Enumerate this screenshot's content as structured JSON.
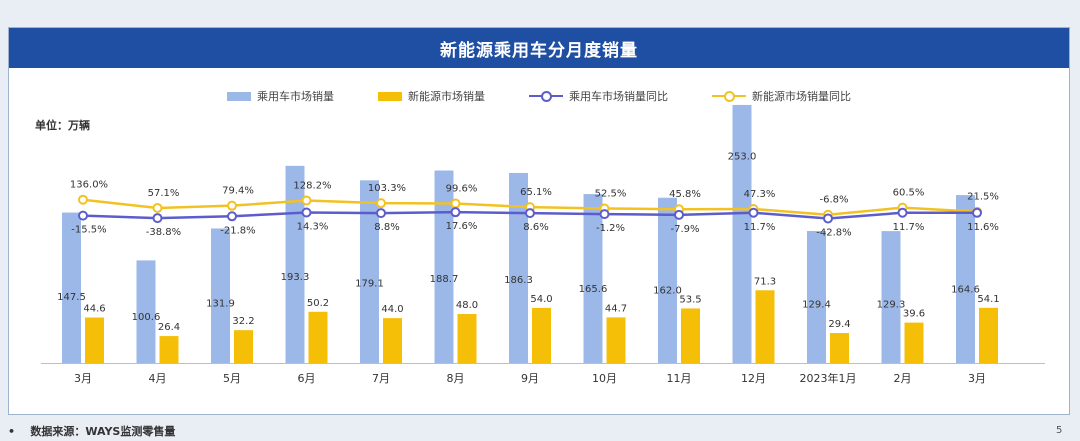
{
  "title": "新能源乘用车分月度销量",
  "unit_label": "单位：万辆",
  "footer": {
    "bullet": "•",
    "source": "数据来源：WAYS监测零售量",
    "page_number": "5"
  },
  "colors": {
    "title_bg": "#1f4fa3",
    "passenger_bar": "#9cb8e8",
    "nev_bar": "#f5bf08",
    "passenger_line": "#5c5ccc",
    "nev_line": "#f2c224"
  },
  "chart_data": {
    "type": "bar",
    "categories": [
      "3月",
      "4月",
      "5月",
      "6月",
      "7月",
      "8月",
      "9月",
      "10月",
      "11月",
      "12月",
      "2023年1月",
      "2月",
      "3月"
    ],
    "series": [
      {
        "name": "乘用车市场销量",
        "kind": "bar",
        "values": [
          147.5,
          100.6,
          131.9,
          193.3,
          179.1,
          188.7,
          186.3,
          165.6,
          162.0,
          253.0,
          129.4,
          129.3,
          164.6
        ]
      },
      {
        "name": "新能源市场销量",
        "kind": "bar",
        "values": [
          44.6,
          26.4,
          32.2,
          50.2,
          44.0,
          48.0,
          54.0,
          44.7,
          53.5,
          71.3,
          29.4,
          39.6,
          54.1
        ]
      },
      {
        "name": "乘用车市场销量同比",
        "kind": "line",
        "values": [
          -15.5,
          -38.8,
          -21.8,
          14.3,
          8.8,
          17.6,
          8.6,
          -1.2,
          -7.9,
          11.7,
          -42.8,
          11.7,
          11.6
        ]
      },
      {
        "name": "新能源市场销量同比",
        "kind": "line",
        "values": [
          136.0,
          57.1,
          79.4,
          128.2,
          103.3,
          99.6,
          65.1,
          52.5,
          45.8,
          47.3,
          -6.8,
          60.5,
          21.5
        ]
      }
    ],
    "bar_labels": [
      [
        "147.5",
        "100.6",
        "131.9",
        "193.3",
        "179.1",
        "188.7",
        "186.3",
        "165.6",
        "162.0",
        "253.0",
        "129.4",
        "129.3",
        "164.6"
      ],
      [
        "44.6",
        "26.4",
        "32.2",
        "50.2",
        "44.0",
        "48.0",
        "54.0",
        "44.7",
        "53.5",
        "71.3",
        "29.4",
        "39.6",
        "54.1"
      ]
    ],
    "line_labels": [
      [
        "-15.5%",
        "-38.8%",
        "-21.8%",
        "14.3%",
        "8.8%",
        "17.6%",
        "8.6%",
        "-1.2%",
        "-7.9%",
        "11.7%",
        "-42.8%",
        "11.7%",
        "11.6%"
      ],
      [
        "136.0%",
        "57.1%",
        "79.4%",
        "128.2%",
        "103.3%",
        "99.6%",
        "65.1%",
        "52.5%",
        "45.8%",
        "47.3%",
        "-6.8%",
        "60.5%",
        "21.5%"
      ]
    ],
    "legend_position": "top",
    "grid": false
  }
}
